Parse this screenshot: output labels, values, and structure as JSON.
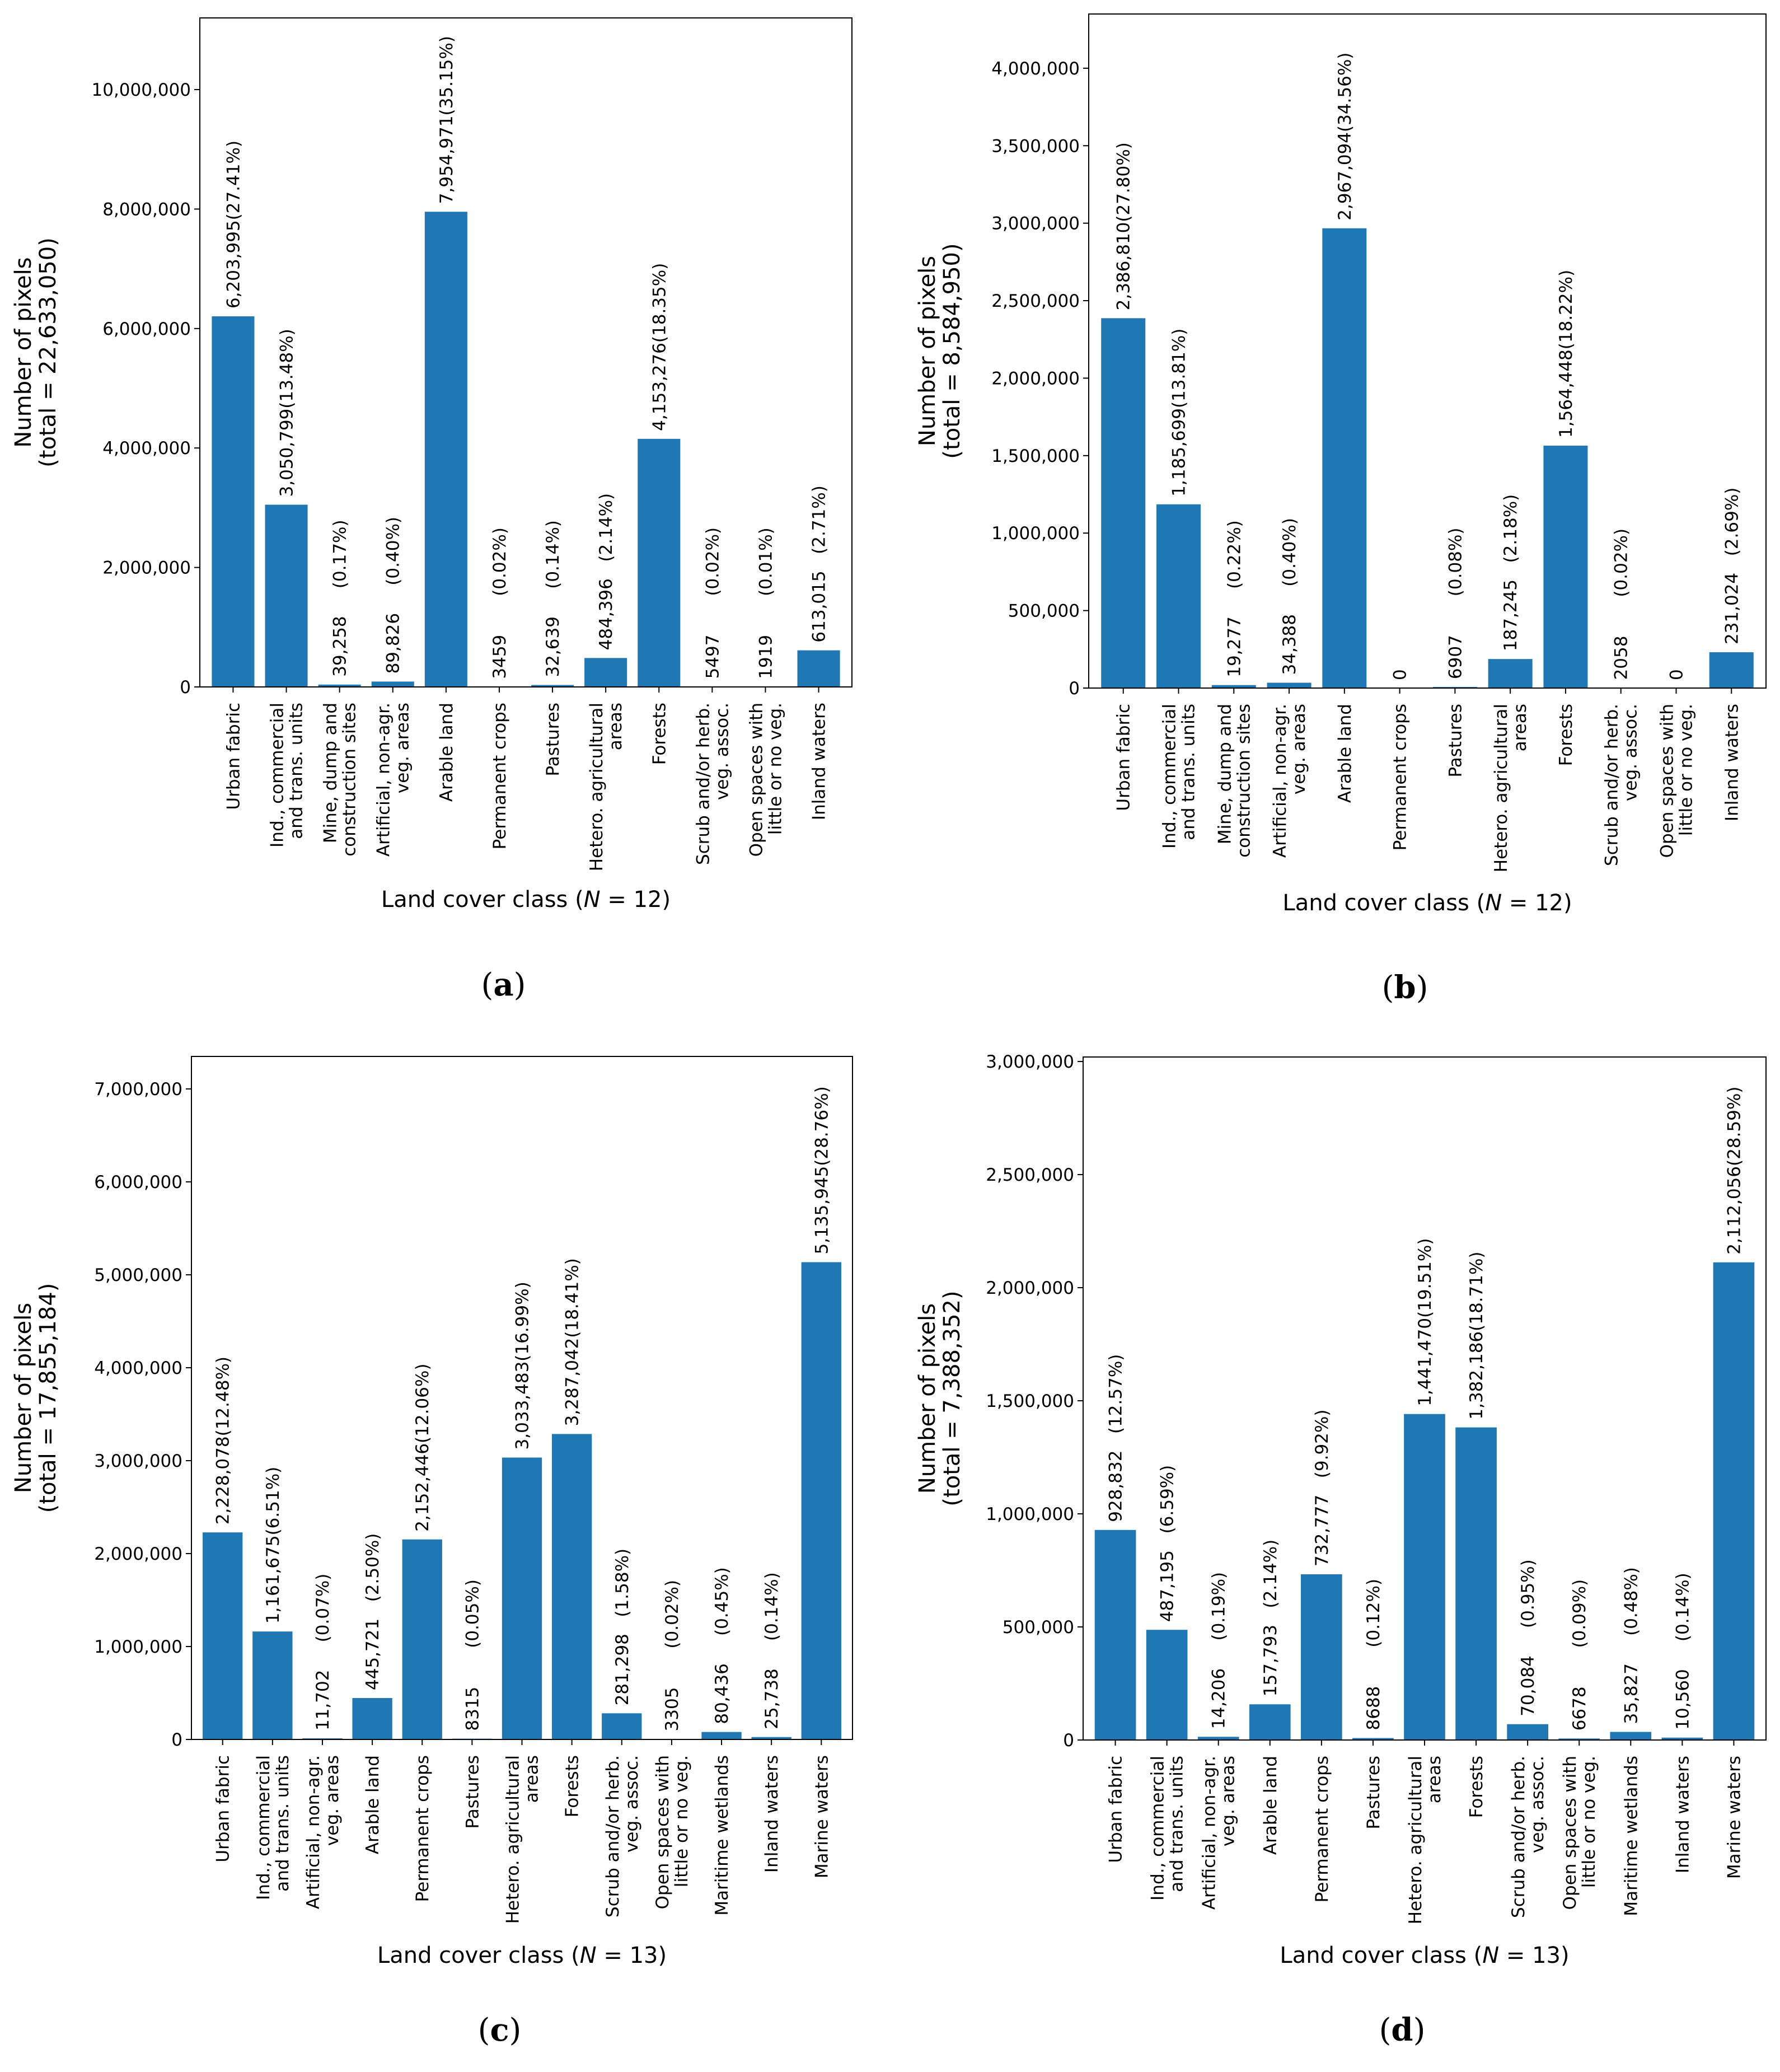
{
  "chart_data": [
    {
      "panel": "a",
      "type": "bar",
      "caption": "(a)",
      "ylabel_lines": [
        "Number of pixels",
        "(total = 22,633,050)"
      ],
      "xlabel": {
        "before": "Land cover class (",
        "italic": "N",
        "after": " = 12)"
      },
      "ylim": [
        0,
        11200000
      ],
      "yticks": [
        0,
        2000000,
        4000000,
        6000000,
        8000000,
        10000000
      ],
      "ytick_labels": [
        "0",
        "2,000,000",
        "4,000,000",
        "6,000,000",
        "8,000,000",
        "10,000,000"
      ],
      "color": "#1f77b4",
      "bars": [
        {
          "cat": [
            "Urban fabric"
          ],
          "value": 6203995,
          "label": "6,203,995(27.41%)"
        },
        {
          "cat": [
            "Ind., commercial",
            "and trans. units"
          ],
          "value": 3050799,
          "label": "3,050,799(13.48%)"
        },
        {
          "cat": [
            "Mine, dump and",
            "construction sites"
          ],
          "value": 39258,
          "label": "39,258     (0.17%)"
        },
        {
          "cat": [
            "Artificial, non-agr.",
            "veg. areas"
          ],
          "value": 89826,
          "label": "89,826     (0.40%)"
        },
        {
          "cat": [
            "Arable land"
          ],
          "value": 7954971,
          "label": "7,954,971(35.15%)"
        },
        {
          "cat": [
            "Permanent crops"
          ],
          "value": 3459,
          "label": "3459       (0.02%)"
        },
        {
          "cat": [
            "Pastures"
          ],
          "value": 32639,
          "label": "32,639     (0.14%)"
        },
        {
          "cat": [
            "Hetero. agricultural",
            "areas"
          ],
          "value": 484396,
          "label": "484,396   (2.14%)"
        },
        {
          "cat": [
            "Forests"
          ],
          "value": 4153276,
          "label": "4,153,276(18.35%)"
        },
        {
          "cat": [
            "Scrub and/or herb.",
            "veg. assoc."
          ],
          "value": 5497,
          "label": "5497       (0.02%)"
        },
        {
          "cat": [
            "Open spaces with",
            "little or no veg."
          ],
          "value": 1919,
          "label": "1919       (0.01%)"
        },
        {
          "cat": [
            "Inland waters"
          ],
          "value": 613015,
          "label": "613,015   (2.71%)"
        }
      ]
    },
    {
      "panel": "b",
      "type": "bar",
      "caption": "(b)",
      "ylabel_lines": [
        "Number of pixels",
        "(total = 8,584,950)"
      ],
      "xlabel": {
        "before": "Land cover class (",
        "italic": "N",
        "after": " = 12)"
      },
      "ylim": [
        0,
        4350000
      ],
      "yticks": [
        0,
        500000,
        1000000,
        1500000,
        2000000,
        2500000,
        3000000,
        3500000,
        4000000
      ],
      "ytick_labels": [
        "0",
        "500,000",
        "1,000,000",
        "1,500,000",
        "2,000,000",
        "2,500,000",
        "3,000,000",
        "3,500,000",
        "4,000,000"
      ],
      "color": "#1f77b4",
      "bars": [
        {
          "cat": [
            "Urban fabric"
          ],
          "value": 2386810,
          "label": "2,386,810(27.80%)"
        },
        {
          "cat": [
            "Ind., commercial",
            "and trans. units"
          ],
          "value": 1185699,
          "label": "1,185,699(13.81%)"
        },
        {
          "cat": [
            "Mine, dump and",
            "construction sites"
          ],
          "value": 19277,
          "label": "19,277     (0.22%)"
        },
        {
          "cat": [
            "Artificial, non-agr.",
            "veg. areas"
          ],
          "value": 34388,
          "label": "34,388     (0.40%)"
        },
        {
          "cat": [
            "Arable land"
          ],
          "value": 2967094,
          "label": "2,967,094(34.56%)"
        },
        {
          "cat": [
            "Permanent crops"
          ],
          "value": 0,
          "label": "0"
        },
        {
          "cat": [
            "Pastures"
          ],
          "value": 6907,
          "label": "6907       (0.08%)"
        },
        {
          "cat": [
            "Hetero. agricultural",
            "areas"
          ],
          "value": 187245,
          "label": "187,245   (2.18%)"
        },
        {
          "cat": [
            "Forests"
          ],
          "value": 1564448,
          "label": "1,564,448(18.22%)"
        },
        {
          "cat": [
            "Scrub and/or herb.",
            "veg. assoc."
          ],
          "value": 2058,
          "label": "2058       (0.02%)"
        },
        {
          "cat": [
            "Open spaces with",
            "little or no veg."
          ],
          "value": 0,
          "label": "0"
        },
        {
          "cat": [
            "Inland waters"
          ],
          "value": 231024,
          "label": "231,024   (2.69%)"
        }
      ]
    },
    {
      "panel": "c",
      "type": "bar",
      "caption": "(c)",
      "ylabel_lines": [
        "Number of pixels",
        "(total = 17,855,184)"
      ],
      "xlabel": {
        "before": "Land cover class (",
        "italic": "N",
        "after": " = 13)"
      },
      "ylim": [
        0,
        7350000
      ],
      "yticks": [
        0,
        1000000,
        2000000,
        3000000,
        4000000,
        5000000,
        6000000,
        7000000
      ],
      "ytick_labels": [
        "0",
        "1,000,000",
        "2,000,000",
        "3,000,000",
        "4,000,000",
        "5,000,000",
        "6,000,000",
        "7,000,000"
      ],
      "color": "#1f77b4",
      "bars": [
        {
          "cat": [
            "Urban fabric"
          ],
          "value": 2228078,
          "label": "2,228,078(12.48%)"
        },
        {
          "cat": [
            "Ind., commercial",
            "and trans. units"
          ],
          "value": 1161675,
          "label": "1,161,675(6.51%)"
        },
        {
          "cat": [
            "Artificial, non-agr.",
            "veg. areas"
          ],
          "value": 11702,
          "label": "11,702     (0.07%)"
        },
        {
          "cat": [
            "Arable land"
          ],
          "value": 445721,
          "label": "445,721   (2.50%)"
        },
        {
          "cat": [
            "Permanent crops"
          ],
          "value": 2152446,
          "label": "2,152,446(12.06%)"
        },
        {
          "cat": [
            "Pastures"
          ],
          "value": 8315,
          "label": "8315       (0.05%)"
        },
        {
          "cat": [
            "Hetero. agricultural",
            "areas"
          ],
          "value": 3033483,
          "label": "3,033,483(16.99%)"
        },
        {
          "cat": [
            "Forests"
          ],
          "value": 3287042,
          "label": "3,287,042(18.41%)"
        },
        {
          "cat": [
            "Scrub and/or herb.",
            "veg. assoc."
          ],
          "value": 281298,
          "label": "281,298   (1.58%)"
        },
        {
          "cat": [
            "Open spaces with",
            "little or no veg."
          ],
          "value": 3305,
          "label": "3305       (0.02%)"
        },
        {
          "cat": [
            "Maritime wetlands"
          ],
          "value": 80436,
          "label": "80,436     (0.45%)"
        },
        {
          "cat": [
            "Inland waters"
          ],
          "value": 25738,
          "label": "25,738     (0.14%)"
        },
        {
          "cat": [
            "Marine waters"
          ],
          "value": 5135945,
          "label": "5,135,945(28.76%)"
        }
      ]
    },
    {
      "panel": "d",
      "type": "bar",
      "caption": "(d)",
      "ylabel_lines": [
        "Number of pixels",
        "(total = 7,388,352)"
      ],
      "xlabel": {
        "before": "Land cover class (",
        "italic": "N",
        "after": " = 13)"
      },
      "ylim": [
        0,
        3020000
      ],
      "yticks": [
        0,
        500000,
        1000000,
        1500000,
        2000000,
        2500000,
        3000000
      ],
      "ytick_labels": [
        "0",
        "500,000",
        "1,000,000",
        "1,500,000",
        "2,000,000",
        "2,500,000",
        "3,000,000"
      ],
      "color": "#1f77b4",
      "bars": [
        {
          "cat": [
            "Urban fabric"
          ],
          "value": 928832,
          "label": "928,832   (12.57%)"
        },
        {
          "cat": [
            "Ind., commercial",
            "and trans. units"
          ],
          "value": 487195,
          "label": "487,195   (6.59%)"
        },
        {
          "cat": [
            "Artificial, non-agr.",
            "veg. areas"
          ],
          "value": 14206,
          "label": "14,206     (0.19%)"
        },
        {
          "cat": [
            "Arable land"
          ],
          "value": 157793,
          "label": "157,793   (2.14%)"
        },
        {
          "cat": [
            "Permanent crops"
          ],
          "value": 732777,
          "label": "732,777   (9.92%)"
        },
        {
          "cat": [
            "Pastures"
          ],
          "value": 8688,
          "label": "8688       (0.12%)"
        },
        {
          "cat": [
            "Hetero. agricultural",
            "areas"
          ],
          "value": 1441470,
          "label": "1,441,470(19.51%)"
        },
        {
          "cat": [
            "Forests"
          ],
          "value": 1382186,
          "label": "1,382,186(18.71%)"
        },
        {
          "cat": [
            "Scrub and/or herb.",
            "veg. assoc."
          ],
          "value": 70084,
          "label": "70,084     (0.95%)"
        },
        {
          "cat": [
            "Open spaces with",
            "little or no veg."
          ],
          "value": 6678,
          "label": "6678       (0.09%)"
        },
        {
          "cat": [
            "Maritime wetlands"
          ],
          "value": 35827,
          "label": "35,827     (0.48%)"
        },
        {
          "cat": [
            "Inland waters"
          ],
          "value": 10560,
          "label": "10,560     (0.14%)"
        },
        {
          "cat": [
            "Marine waters"
          ],
          "value": 2112056,
          "label": "2,112,056(28.59%)"
        }
      ]
    }
  ]
}
